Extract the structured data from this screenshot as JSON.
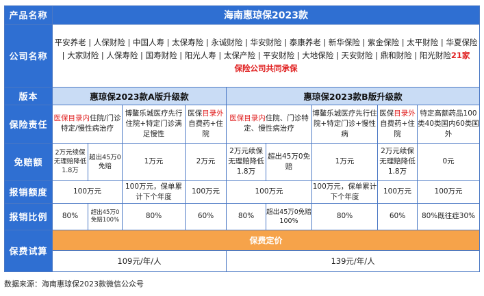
{
  "labels": {
    "product": "产品名称",
    "company": "公司名称",
    "version": "版本",
    "coverage": "保险责任",
    "deductible": "免赔额",
    "limit": "报销额度",
    "ratio": "报销比例",
    "premium": "保费试算"
  },
  "title": "海南惠琼保2023款",
  "companies": {
    "list": "平安养老 | 人保财险 | 中国人寿 | 太保寿险 | 永诚财险 | 华安财险 | 泰康养老 | 新华保险 | 紫金保险 | 太平财险 | 华夏保险 | 大家财险 | 人保寿险 | 国寿财险 | 阳光人寿 | 太保产险 | 平安财险 | 大地保险 | 天安财险 | 鼎和财险 | 阳光财险",
    "highlight_line1": "21家",
    "highlight_line2": "保险公司共同承保"
  },
  "versions": {
    "a": "惠琼保2023款A版升级款",
    "b": "惠琼保2023款B版升级款"
  },
  "coverage": {
    "a1_red": "医保目录内",
    "a1_rest": "住院/门诊特定/慢性病治疗",
    "a2": "博鳌乐城医疗先行住院+特定门诊满足慢性",
    "a3_pre": "医保",
    "a3_red": "目录外",
    "a3_rest": "自费药+住院",
    "b1_red": "医保目录内",
    "b1_rest": "住院、门诊特定、慢性病治疗",
    "b2": "博鳌乐城医疗先行住院+特定门诊+慢性病",
    "b3_pre": "医保",
    "b3_red": "目录外",
    "b3_rest": "自费药+住院",
    "b4": "特定高额药品100类40类国内60类国外"
  },
  "deductible": {
    "a1": "2万元续保无理赔降低1.8万",
    "a2": "超出45万0免赔",
    "a3": "1万元",
    "a4": "2万元",
    "b1": "2万元续保无理赔降低1.8万",
    "b2": "超出45万0免赔",
    "b3": "1万元",
    "b4": "2万元续保无理赔降低1.8万",
    "b5": "0元"
  },
  "limit": {
    "a1": "100万元",
    "a2": "100万元，保单累计下个年度",
    "a3": "100万元",
    "b1": "100万元",
    "b2": "100万元，保单累计下个年度",
    "b3": "100万元",
    "b4": "100万元"
  },
  "ratio": {
    "a1": "80%",
    "a2": "超出45万0免赔100%",
    "a3": "80%",
    "a4": "60%",
    "b1": "80%",
    "b2": "超出45万0免赔100%",
    "b3": "80%",
    "b4": "60%",
    "b5": "80%既往症30%"
  },
  "premium": {
    "header": "保费定价",
    "a": "109元/年/人",
    "b": "139元/年/人"
  },
  "source": "数据来源：海南惠琼保2023款微信公众号",
  "colors": {
    "header_blue": "#2f6fd2",
    "light_blue": "#c9dcf5",
    "orange": "#f6a34a",
    "red": "#e02020"
  }
}
